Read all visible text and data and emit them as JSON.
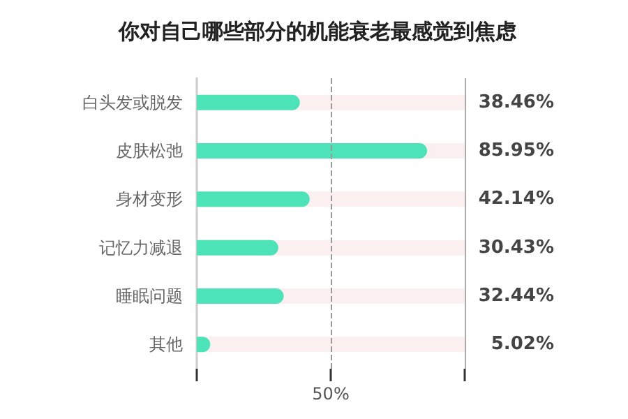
{
  "chart_data": {
    "type": "bar",
    "orientation": "horizontal",
    "title": "你对自己哪些部分的机能衰老最感觉到焦虑",
    "categories": [
      "白头发或脱发",
      "皮肤松弛",
      "身材变形",
      "记忆力减退",
      "睡眠问题",
      "其他"
    ],
    "values": [
      38.46,
      85.95,
      42.14,
      30.43,
      32.44,
      5.02
    ],
    "value_labels": [
      "38.46%",
      "85.95%",
      "42.14%",
      "30.43%",
      "32.44%",
      "5.02%"
    ],
    "color": "#4de3b8",
    "xlim": [
      0,
      100
    ],
    "xticks": [
      {
        "value": 0,
        "label": null
      },
      {
        "value": 50,
        "label": "50%"
      },
      {
        "value": 100,
        "label": null
      }
    ],
    "ref_lines": [
      {
        "axis": "x",
        "value": 50,
        "color": "#999999",
        "line_style": "dashed"
      },
      {
        "axis": "x",
        "value": 100,
        "color": "#aaaaaa",
        "line_style": "solid"
      }
    ],
    "grid": false
  }
}
